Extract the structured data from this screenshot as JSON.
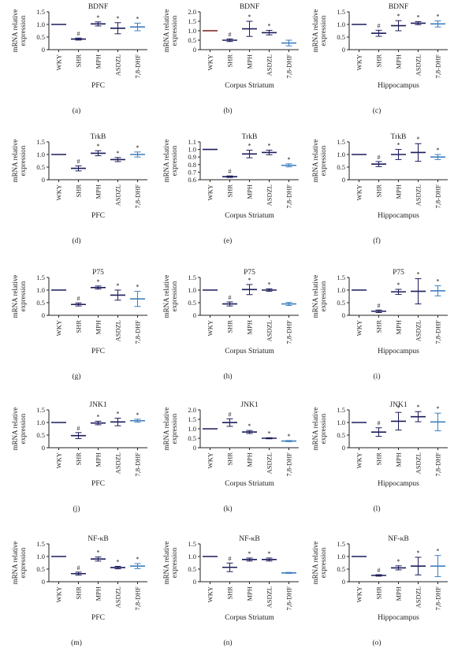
{
  "colors": {
    "axis": "#222222",
    "wky": "#1c1c5c",
    "shr": "#1c1c5c",
    "mph": "#1c1c5c",
    "asdzl": "#1c1c5c",
    "dhf": "#3d7fbf",
    "brown": "#7a1c1c"
  },
  "categories": [
    "WKY",
    "SHR",
    "MPH",
    "ASDZL",
    "7,8-DHF"
  ],
  "ylabel_line1": "mRNA relative",
  "ylabel_line2": "expression",
  "chart_data": [
    {
      "type": "scatter",
      "panel": "(a)",
      "title": "BDNF",
      "xlabel": "PFC",
      "ylim": [
        0,
        1.5
      ],
      "yticks": [
        "0",
        "0.5",
        "1.0",
        "1.5"
      ],
      "categories": [
        "WKY",
        "SHR",
        "MPH",
        "ASDZL",
        "7,8-DHF"
      ],
      "series": [
        {
          "values": [
            1.0,
            0.42,
            1.02,
            0.85,
            0.9
          ],
          "errors": [
            0,
            0.04,
            0.08,
            0.22,
            0.15
          ],
          "markers": [
            "",
            "#",
            "*",
            "*",
            "*"
          ]
        }
      ]
    },
    {
      "type": "scatter",
      "panel": "(b)",
      "title": "BDNF",
      "xlabel": "Corpus Striatum",
      "ylim": [
        0,
        2.0
      ],
      "yticks": [
        "0",
        "0.5",
        "1.0",
        "1.5",
        "2.0"
      ],
      "categories": [
        "WKY",
        "SHR",
        "MPH",
        "ASDZL",
        "7,8-DHF"
      ],
      "series": [
        {
          "values": [
            1.0,
            0.5,
            1.1,
            0.9,
            0.35
          ],
          "errors": [
            0,
            0.07,
            0.4,
            0.12,
            0.15
          ],
          "markers": [
            "",
            "#",
            "*",
            "*",
            ""
          ]
        }
      ]
    },
    {
      "type": "scatter",
      "panel": "(c)",
      "title": "BDNF",
      "xlabel": "Hippocampus",
      "ylim": [
        0,
        1.5
      ],
      "yticks": [
        "0",
        "0.5",
        "1.0",
        "1.5"
      ],
      "categories": [
        "WKY",
        "SHR",
        "MPH",
        "ASDZL",
        "7,8-DHF"
      ],
      "series": [
        {
          "values": [
            1.0,
            0.65,
            0.95,
            1.05,
            1.02
          ],
          "errors": [
            0,
            0.12,
            0.2,
            0.06,
            0.12
          ],
          "markers": [
            "",
            "#",
            "*",
            "*",
            "*"
          ]
        }
      ]
    },
    {
      "type": "scatter",
      "panel": "(d)",
      "title": "TrkB",
      "xlabel": "PFC",
      "ylim": [
        0,
        1.5
      ],
      "yticks": [
        "0",
        "0.5",
        "1.0",
        "1.5"
      ],
      "categories": [
        "WKY",
        "SHR",
        "MPH",
        "ASDZL",
        "7,8-DHF"
      ],
      "series": [
        {
          "values": [
            1.0,
            0.45,
            1.05,
            0.8,
            1.0
          ],
          "errors": [
            0,
            0.1,
            0.1,
            0.08,
            0.1
          ],
          "markers": [
            "",
            "#",
            "*",
            "*",
            "*"
          ]
        }
      ]
    },
    {
      "type": "scatter",
      "panel": "(e)",
      "title": "TrkB",
      "xlabel": "Corpus Striatum",
      "ylim": [
        0.6,
        1.1
      ],
      "yticks": [
        "0.6",
        "0.7",
        "0.8",
        "0.9",
        "1.0",
        "1.1"
      ],
      "categories": [
        "WKY",
        "SHR",
        "MPH",
        "ASDZL",
        "7,8-DHF"
      ],
      "series": [
        {
          "values": [
            1.0,
            0.64,
            0.94,
            0.96,
            0.79
          ],
          "errors": [
            0,
            0.01,
            0.05,
            0.03,
            0.02
          ],
          "markers": [
            "",
            "#",
            "*",
            "*",
            "*"
          ]
        }
      ]
    },
    {
      "type": "scatter",
      "panel": "(f)",
      "title": "TrkB",
      "xlabel": "Hippocampus",
      "ylim": [
        0,
        1.5
      ],
      "yticks": [
        "0",
        "0.5",
        "1.0",
        "1.5"
      ],
      "categories": [
        "WKY",
        "SHR",
        "MPH",
        "ASDZL",
        "7,8-DHF"
      ],
      "series": [
        {
          "values": [
            1.0,
            0.62,
            1.0,
            1.08,
            0.9
          ],
          "errors": [
            0,
            0.1,
            0.2,
            0.35,
            0.1
          ],
          "markers": [
            "",
            "#",
            "*",
            "*",
            "*"
          ]
        }
      ]
    },
    {
      "type": "scatter",
      "panel": "(g)",
      "title": "P75",
      "xlabel": "PFC",
      "ylim": [
        0,
        1.5
      ],
      "yticks": [
        "0",
        "0.5",
        "1.0",
        "1.5"
      ],
      "categories": [
        "WKY",
        "SHR",
        "MPH",
        "ASDZL",
        "7,8-DHF"
      ],
      "series": [
        {
          "values": [
            1.0,
            0.43,
            1.1,
            0.8,
            0.65
          ],
          "errors": [
            0,
            0.06,
            0.06,
            0.2,
            0.3
          ],
          "markers": [
            "",
            "#",
            "*",
            "*",
            "*"
          ]
        }
      ]
    },
    {
      "type": "scatter",
      "panel": "(h)",
      "title": "P75",
      "xlabel": "Corpus Striatum",
      "ylim": [
        0,
        1.5
      ],
      "yticks": [
        "0",
        "0.5",
        "1.0",
        "1.5"
      ],
      "categories": [
        "WKY",
        "SHR",
        "MPH",
        "ASDZL",
        "7,8-DHF"
      ],
      "series": [
        {
          "values": [
            1.0,
            0.45,
            1.02,
            1.0,
            0.45
          ],
          "errors": [
            0,
            0.08,
            0.2,
            0.05,
            0.06
          ],
          "markers": [
            "",
            "#",
            "*",
            "*",
            ""
          ]
        }
      ]
    },
    {
      "type": "scatter",
      "panel": "(i)",
      "title": "P75",
      "xlabel": "Hippocampus",
      "ylim": [
        0,
        1.5
      ],
      "yticks": [
        "0",
        "0.5",
        "1.0",
        "1.5"
      ],
      "categories": [
        "WKY",
        "SHR",
        "MPH",
        "ASDZL",
        "7,8-DHF"
      ],
      "series": [
        {
          "values": [
            1.0,
            0.16,
            0.93,
            0.95,
            0.97
          ],
          "errors": [
            0,
            0.05,
            0.1,
            0.5,
            0.2
          ],
          "markers": [
            "",
            "#",
            "*",
            "*",
            "*"
          ]
        }
      ]
    },
    {
      "type": "scatter",
      "panel": "(j)",
      "title": "JNK1",
      "xlabel": "PFC",
      "ylim": [
        0,
        1.5
      ],
      "yticks": [
        "0",
        "0.5",
        "1.0",
        "1.5"
      ],
      "categories": [
        "WKY",
        "SHR",
        "MPH",
        "ASDZL",
        "7,8-DHF"
      ],
      "series": [
        {
          "values": [
            1.0,
            0.48,
            0.98,
            1.02,
            1.07
          ],
          "errors": [
            0,
            0.12,
            0.07,
            0.15,
            0.06
          ],
          "markers": [
            "",
            "#",
            "*",
            "*",
            "*"
          ]
        }
      ]
    },
    {
      "type": "scatter",
      "panel": "(k)",
      "title": "JNK1",
      "xlabel": "Corpus Striatum",
      "ylim": [
        0,
        2.0
      ],
      "yticks": [
        "0",
        "0.5",
        "1.0",
        "1.5",
        "2.0"
      ],
      "categories": [
        "WKY",
        "SHR",
        "MPH",
        "ASDZL",
        "7,8-DHF"
      ],
      "series": [
        {
          "values": [
            1.0,
            1.33,
            0.83,
            0.5,
            0.35
          ],
          "errors": [
            0,
            0.2,
            0.08,
            0.03,
            0.03
          ],
          "markers": [
            "",
            "#",
            "*",
            "*",
            "*"
          ]
        }
      ]
    },
    {
      "type": "scatter",
      "panel": "(l)",
      "title": "JNK1",
      "xlabel": "Hippocampus",
      "ylim": [
        0,
        1.5
      ],
      "yticks": [
        "0",
        "0.5",
        "1.0",
        "1.5"
      ],
      "categories": [
        "WKY",
        "SHR",
        "MPH",
        "ASDZL",
        "7,8-DHF"
      ],
      "series": [
        {
          "values": [
            1.0,
            0.62,
            1.05,
            1.23,
            1.02
          ],
          "errors": [
            0,
            0.17,
            0.35,
            0.2,
            0.35
          ],
          "markers": [
            "",
            "#",
            "*",
            "*",
            "*"
          ]
        }
      ]
    },
    {
      "type": "scatter",
      "panel": "(m)",
      "title": "NF-κB",
      "xlabel": "PFC",
      "ylim": [
        0,
        1.5
      ],
      "yticks": [
        "0",
        "0.5",
        "1.0",
        "1.5"
      ],
      "categories": [
        "WKY",
        "SHR",
        "MPH",
        "ASDZL",
        "7,8-DHF"
      ],
      "series": [
        {
          "values": [
            1.0,
            0.32,
            0.9,
            0.56,
            0.62
          ],
          "errors": [
            0,
            0.06,
            0.08,
            0.05,
            0.1
          ],
          "markers": [
            "",
            "#",
            "*",
            "*",
            "*"
          ]
        }
      ]
    },
    {
      "type": "scatter",
      "panel": "(n)",
      "title": "NF-κB",
      "xlabel": "Corpus Striatum",
      "ylim": [
        0,
        1.5
      ],
      "yticks": [
        "0",
        "0.5",
        "1.0",
        "1.5"
      ],
      "categories": [
        "WKY",
        "SHR",
        "MPH",
        "ASDZL",
        "7,8-DHF"
      ],
      "series": [
        {
          "values": [
            1.0,
            0.57,
            0.88,
            0.88,
            0.35
          ],
          "errors": [
            0,
            0.17,
            0.06,
            0.06,
            0.02
          ],
          "markers": [
            "",
            "#",
            "*",
            "*",
            ""
          ]
        }
      ]
    },
    {
      "type": "scatter",
      "panel": "(o)",
      "title": "NF-κB",
      "xlabel": "Hippocampus",
      "ylim": [
        0,
        1.5
      ],
      "yticks": [
        "0",
        "0.5",
        "1.0",
        "1.5"
      ],
      "categories": [
        "WKY",
        "SHR",
        "MPH",
        "ASDZL",
        "7,8-DHF"
      ],
      "series": [
        {
          "values": [
            1.0,
            0.25,
            0.55,
            0.62,
            0.62
          ],
          "errors": [
            0,
            0.03,
            0.08,
            0.35,
            0.42
          ],
          "markers": [
            "",
            "#",
            "*",
            "*",
            "*"
          ]
        }
      ]
    }
  ]
}
